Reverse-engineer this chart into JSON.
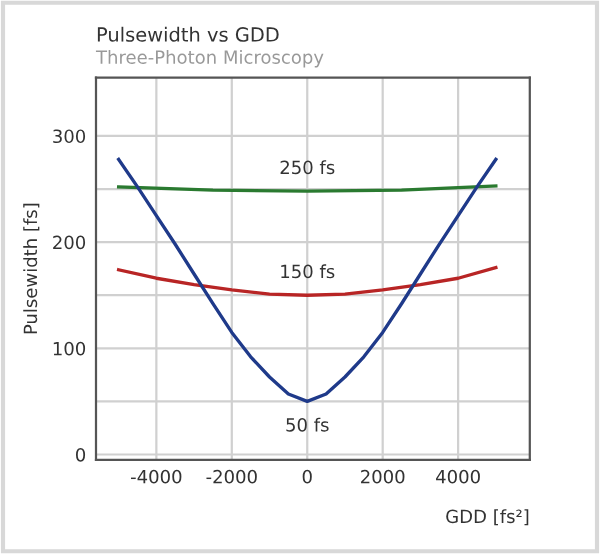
{
  "chart_data": {
    "type": "line",
    "title": "Pulsewidth vs GDD",
    "subtitle": "Three-Photon Microscopy",
    "xlabel": "GDD [fs²]",
    "ylabel": "Pulsewidth [fs]",
    "xlim": [
      -5600,
      5900
    ],
    "xticks": [
      -4000,
      -2000,
      0,
      2000,
      4000
    ],
    "ylim": [
      -5,
      355
    ],
    "yticks": [
      0,
      {
        "value": 50,
        "label": null
      },
      100,
      {
        "value": 150,
        "label": null
      },
      200,
      {
        "value": 250,
        "label": null
      },
      300
    ],
    "grid": true,
    "marker": "none",
    "line_style": "solid",
    "series": [
      {
        "name": "250 fs",
        "color": "#2a7a30",
        "x": [
          -5000,
          -2500,
          0,
          2500,
          5000
        ],
        "values": [
          252,
          249,
          248,
          249,
          253
        ]
      },
      {
        "name": "150 fs",
        "color": "#b82525",
        "x": [
          -5000,
          -4000,
          -3000,
          -2000,
          -1000,
          0,
          1000,
          2000,
          3000,
          4000,
          5000
        ],
        "values": [
          174,
          166,
          160,
          155,
          151,
          150,
          151,
          155,
          160,
          166,
          176
        ]
      },
      {
        "name": "50 fs",
        "color": "#1f3a8a",
        "x": [
          -5000,
          -4500,
          -4000,
          -3500,
          -3000,
          -2500,
          -2000,
          -1500,
          -1000,
          -500,
          0,
          500,
          1000,
          1500,
          2000,
          2500,
          3000,
          3500,
          4000,
          4500,
          5000
        ],
        "values": [
          278,
          252,
          225,
          198,
          170,
          142,
          115,
          92,
          73,
          57,
          50,
          57,
          73,
          92,
          115,
          142,
          170,
          198,
          225,
          252,
          278
        ]
      }
    ]
  }
}
